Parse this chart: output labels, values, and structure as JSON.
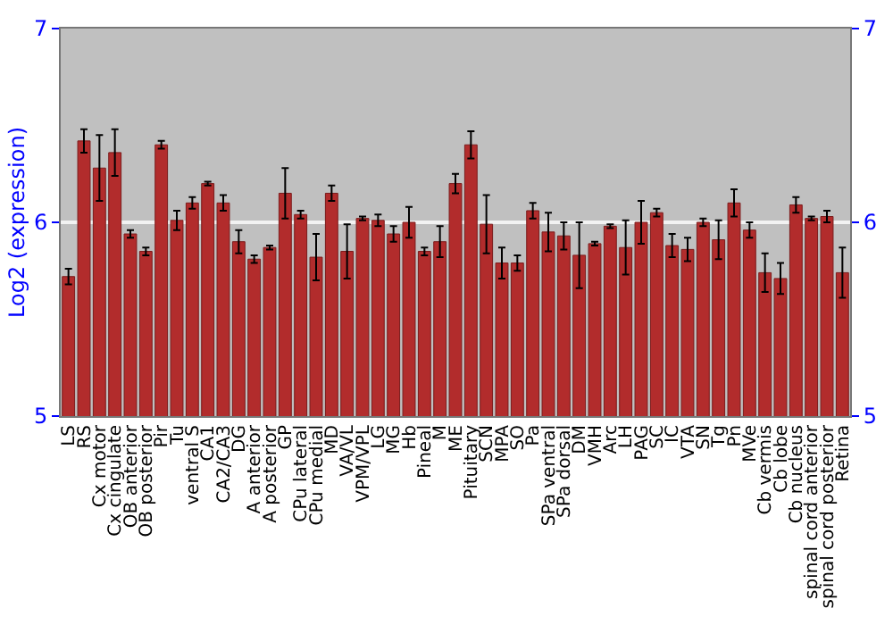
{
  "chart_data": {
    "type": "bar",
    "ylabel": "Log2 (expression)",
    "categories": [
      "LS",
      "RS",
      "Cx motor",
      "Cx cingulate",
      "OB anterior",
      "OB posterior",
      "Pir",
      "Tu",
      "ventral S",
      "CA1",
      "CA2/CA3",
      "DG",
      "A anterior",
      "A posterior",
      "GP",
      "CPu lateral",
      "CPu medial",
      "MD",
      "VA/VL",
      "VPM/VPL",
      "LG",
      "MG",
      "Hb",
      "Pineal",
      "M",
      "ME",
      "Pituitary",
      "SCN",
      "MPA",
      "SO",
      "Pa",
      "SPa ventral",
      "SPa dorsal",
      "DM",
      "VMH",
      "Arc",
      "LH",
      "PAG",
      "SC",
      "IC",
      "VTA",
      "SN",
      "Tg",
      "Pn",
      "MVe",
      "Cb vermis",
      "Cb lobe",
      "Cb nucleus",
      "spinal cord anterior",
      "spinal cord posterior",
      "Retina"
    ],
    "values": [
      5.72,
      6.42,
      6.28,
      6.36,
      5.94,
      5.85,
      6.4,
      6.01,
      6.1,
      6.2,
      6.1,
      5.9,
      5.81,
      5.87,
      6.15,
      6.04,
      5.82,
      6.15,
      5.85,
      6.02,
      6.01,
      5.94,
      6.0,
      5.85,
      5.9,
      6.2,
      6.4,
      5.99,
      5.79,
      5.79,
      6.06,
      5.95,
      5.93,
      5.83,
      5.89,
      5.98,
      5.87,
      6.0,
      6.05,
      5.88,
      5.86,
      6.0,
      5.91,
      6.1,
      5.96,
      5.74,
      5.71,
      6.09,
      6.02,
      6.03,
      5.74
    ],
    "errors": [
      0.04,
      0.06,
      0.17,
      0.12,
      0.02,
      0.02,
      0.02,
      0.05,
      0.03,
      0.01,
      0.04,
      0.06,
      0.02,
      0.01,
      0.13,
      0.02,
      0.12,
      0.04,
      0.14,
      0.01,
      0.03,
      0.04,
      0.08,
      0.02,
      0.08,
      0.05,
      0.07,
      0.15,
      0.08,
      0.04,
      0.04,
      0.1,
      0.07,
      0.17,
      0.01,
      0.01,
      0.14,
      0.11,
      0.02,
      0.06,
      0.06,
      0.02,
      0.1,
      0.07,
      0.04,
      0.1,
      0.08,
      0.04,
      0.01,
      0.03,
      0.13
    ],
    "color": "#b22c2c",
    "ylim": [
      5,
      7
    ],
    "yticks": [
      5,
      6,
      7
    ],
    "y2lim": [
      5,
      7
    ],
    "y2ticks": [
      5,
      6,
      7
    ],
    "grid": "y"
  }
}
